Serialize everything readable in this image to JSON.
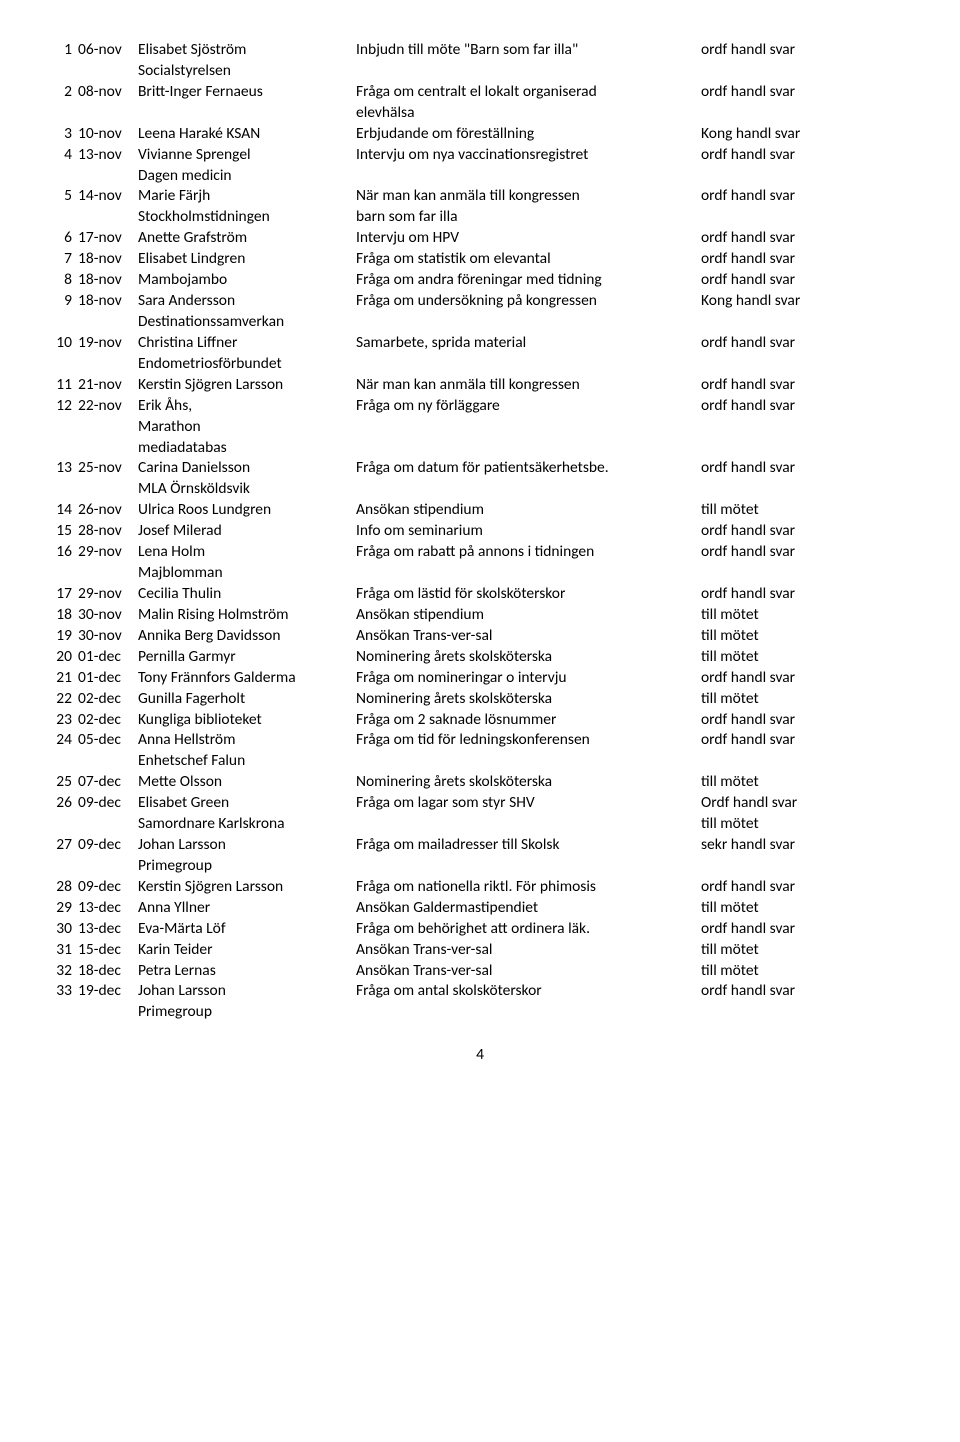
{
  "page_number": "4",
  "rows": [
    {
      "num": "1",
      "date": "06-nov",
      "from": [
        "Elisabet Sjöström",
        "Socialstyrelsen"
      ],
      "subj": [
        "Inbjudn till möte \"Barn som far illa\""
      ],
      "act": [
        "ordf handl svar"
      ]
    },
    {
      "num": "2",
      "date": "08-nov",
      "from": [
        "Britt-Inger Fernaeus"
      ],
      "subj": [
        "Fråga om centralt el lokalt organiserad",
        "elevhälsa"
      ],
      "act": [
        "ordf handl svar"
      ]
    },
    {
      "num": "3",
      "date": "10-nov",
      "from": [
        "Leena Haraké KSAN"
      ],
      "subj": [
        "Erbjudande om föreställning"
      ],
      "act": [
        "Kong handl svar"
      ]
    },
    {
      "num": "4",
      "date": "13-nov",
      "from": [
        "Vivianne Sprengel",
        "Dagen medicin"
      ],
      "subj": [
        "Intervju om nya vaccinationsregistret"
      ],
      "act": [
        "ordf handl svar"
      ]
    },
    {
      "num": "5",
      "date": "14-nov",
      "from": [
        "Marie Färjh",
        "Stockholmstidningen"
      ],
      "subj": [
        "När man kan anmäla till kongressen",
        "barn som far illa"
      ],
      "act": [
        "ordf handl svar"
      ]
    },
    {
      "num": "6",
      "date": "17-nov",
      "from": [
        "Anette Grafström"
      ],
      "subj": [
        "Intervju om HPV"
      ],
      "act": [
        "ordf handl svar"
      ]
    },
    {
      "num": "7",
      "date": "18-nov",
      "from": [
        "Elisabet Lindgren"
      ],
      "subj": [
        "Fråga om statistik om elevantal"
      ],
      "act": [
        "ordf handl svar"
      ]
    },
    {
      "num": "8",
      "date": "18-nov",
      "from": [
        "Mambojambo"
      ],
      "subj": [
        "Fråga om andra föreningar med tidning"
      ],
      "act": [
        "ordf handl svar"
      ]
    },
    {
      "num": "9",
      "date": "18-nov",
      "from": [
        "Sara Andersson",
        "Destinationssamverkan"
      ],
      "subj": [
        "Fråga om undersökning på kongressen"
      ],
      "act": [
        "Kong handl svar"
      ]
    },
    {
      "num": "10",
      "date": "19-nov",
      "from": [
        "Christina Liffner",
        "Endometriosförbundet"
      ],
      "subj": [
        "Samarbete, sprida material"
      ],
      "act": [
        "ordf handl svar"
      ]
    },
    {
      "num": "11",
      "date": "21-nov",
      "from": [
        "Kerstin Sjögren Larsson"
      ],
      "subj": [
        "När man kan anmäla till kongressen"
      ],
      "act": [
        "ordf handl svar"
      ]
    },
    {
      "num": "12",
      "date": "22-nov",
      "from": [
        "Erik Åhs,",
        "Marathon",
        "mediadatabas"
      ],
      "subj": [
        "Fråga om ny förläggare"
      ],
      "act": [
        "ordf handl svar"
      ]
    },
    {
      "num": "13",
      "date": "25-nov",
      "from": [
        "Carina Danielsson",
        "MLA Örnsköldsvik"
      ],
      "subj": [
        "Fråga om datum för patientsäkerhetsbe."
      ],
      "act": [
        "ordf handl svar"
      ]
    },
    {
      "num": "14",
      "date": "26-nov",
      "from": [
        "Ulrica Roos Lundgren"
      ],
      "subj": [
        "Ansökan stipendium"
      ],
      "act": [
        "till mötet"
      ]
    },
    {
      "num": "15",
      "date": "28-nov",
      "from": [
        "Josef Milerad"
      ],
      "subj": [
        "Info om seminarium"
      ],
      "act": [
        "ordf handl svar"
      ]
    },
    {
      "num": "16",
      "date": "29-nov",
      "from": [
        "Lena Holm",
        "Majblomman"
      ],
      "subj": [
        "Fråga om rabatt på annons i tidningen"
      ],
      "act": [
        "ordf handl svar"
      ]
    },
    {
      "num": "17",
      "date": "29-nov",
      "from": [
        "Cecilia Thulin"
      ],
      "subj": [
        "Fråga om lästid för skolsköterskor"
      ],
      "act": [
        "ordf handl svar"
      ]
    },
    {
      "num": "18",
      "date": "30-nov",
      "from": [
        "Malin Rising Holmström"
      ],
      "subj": [
        "Ansökan stipendium"
      ],
      "act": [
        "till mötet"
      ]
    },
    {
      "num": "19",
      "date": "30-nov",
      "from": [
        "Annika Berg Davidsson"
      ],
      "subj": [
        "Ansökan Trans-ver-sal"
      ],
      "act": [
        "till mötet"
      ]
    },
    {
      "num": "20",
      "date": "01-dec",
      "from": [
        "Pernilla Garmyr"
      ],
      "subj": [
        "Nominering årets skolsköterska"
      ],
      "act": [
        "till mötet"
      ]
    },
    {
      "num": "21",
      "date": "01-dec",
      "from": [
        "Tony Frännfors Galderma"
      ],
      "subj": [
        "Fråga om nomineringar o intervju"
      ],
      "act": [
        "ordf handl svar"
      ]
    },
    {
      "num": "22",
      "date": "02-dec",
      "from": [
        "Gunilla Fagerholt"
      ],
      "subj": [
        "Nominering årets skolsköterska"
      ],
      "act": [
        "till mötet"
      ]
    },
    {
      "num": "23",
      "date": "02-dec",
      "from": [
        "Kungliga biblioteket"
      ],
      "subj": [
        "Fråga om 2 saknade lösnummer"
      ],
      "act": [
        "ordf handl svar"
      ]
    },
    {
      "num": "24",
      "date": "05-dec",
      "from": [
        "Anna Hellström",
        "Enhetschef Falun"
      ],
      "subj": [
        "Fråga om tid för ledningskonferensen"
      ],
      "act": [
        "ordf handl svar"
      ]
    },
    {
      "num": "25",
      "date": "07-dec",
      "from": [
        "Mette Olsson"
      ],
      "subj": [
        "Nominering årets skolsköterska"
      ],
      "act": [
        "till mötet"
      ]
    },
    {
      "num": "26",
      "date": "09-dec",
      "from": [
        "Elisabet Green",
        "Samordnare Karlskrona"
      ],
      "subj": [
        "Fråga om lagar som styr SHV"
      ],
      "act": [
        "Ordf handl svar",
        "till mötet"
      ]
    },
    {
      "num": "27",
      "date": "09-dec",
      "from": [
        "Johan Larsson",
        "Primegroup"
      ],
      "subj": [
        "Fråga om mailadresser till Skolsk"
      ],
      "act": [
        "sekr handl svar"
      ]
    },
    {
      "num": "28",
      "date": "09-dec",
      "from": [
        "Kerstin Sjögren Larsson"
      ],
      "subj": [
        "Fråga om nationella riktl. För phimosis"
      ],
      "act": [
        "ordf handl svar"
      ]
    },
    {
      "num": "29",
      "date": "13-dec",
      "from": [
        "Anna Yllner"
      ],
      "subj": [
        "Ansökan Galdermastipendiet"
      ],
      "act": [
        "till mötet"
      ]
    },
    {
      "num": "30",
      "date": "13-dec",
      "from": [
        "Eva-Märta Löf"
      ],
      "subj": [
        "Fråga om behörighet att ordinera läk."
      ],
      "act": [
        "ordf handl svar"
      ]
    },
    {
      "num": "31",
      "date": "15-dec",
      "from": [
        "Karin Teider"
      ],
      "subj": [
        "Ansökan Trans-ver-sal"
      ],
      "act": [
        "till mötet"
      ]
    },
    {
      "num": "32",
      "date": "18-dec",
      "from": [
        "Petra Lernas"
      ],
      "subj": [
        "Ansökan Trans-ver-sal"
      ],
      "act": [
        "till mötet"
      ]
    },
    {
      "num": "33",
      "date": "19-dec",
      "from": [
        "Johan Larsson",
        "Primegroup"
      ],
      "subj": [
        "Fråga om antal skolsköterskor"
      ],
      "act": [
        "ordf handl svar"
      ]
    }
  ]
}
